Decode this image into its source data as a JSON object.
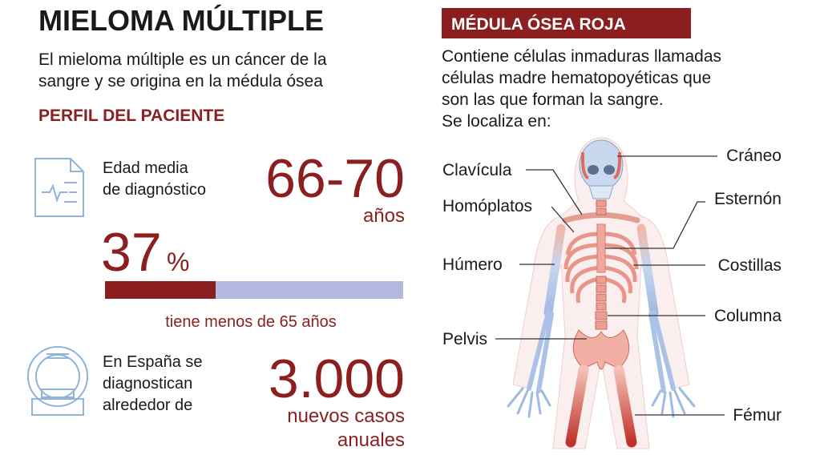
{
  "header": {
    "title": "MIELOMA MÚLTIPLE",
    "subtitle": [
      "El mieloma múltiple es un cáncer de la",
      "sangre y se origina en la médula ósea"
    ]
  },
  "profile": {
    "heading": "PERFIL DEL PACIENTE",
    "age": {
      "label": [
        "Edad media",
        "de diagnóstico"
      ],
      "value": "66-70",
      "unit": "años"
    },
    "percent": {
      "value": 37,
      "unit": "%",
      "caption": "tiene menos de 65 años"
    },
    "cases": {
      "label": [
        "En España se",
        "diagnostican",
        "alrededor de"
      ],
      "value": "3.000",
      "unit": [
        "nuevos casos",
        "anuales"
      ]
    }
  },
  "marrow": {
    "heading": "MÉDULA ÓSEA ROJA",
    "text": [
      "Contiene células inmaduras llamadas",
      "células madre hematopoyéticas que",
      "son las que forman la sangre.",
      "Se localiza en:"
    ],
    "locations": [
      "Cráneo",
      "Clavícula",
      "Esternón",
      "Homóplatos",
      "Húmero",
      "Costillas",
      "Columna",
      "Pelvis",
      "Fémur"
    ]
  }
}
